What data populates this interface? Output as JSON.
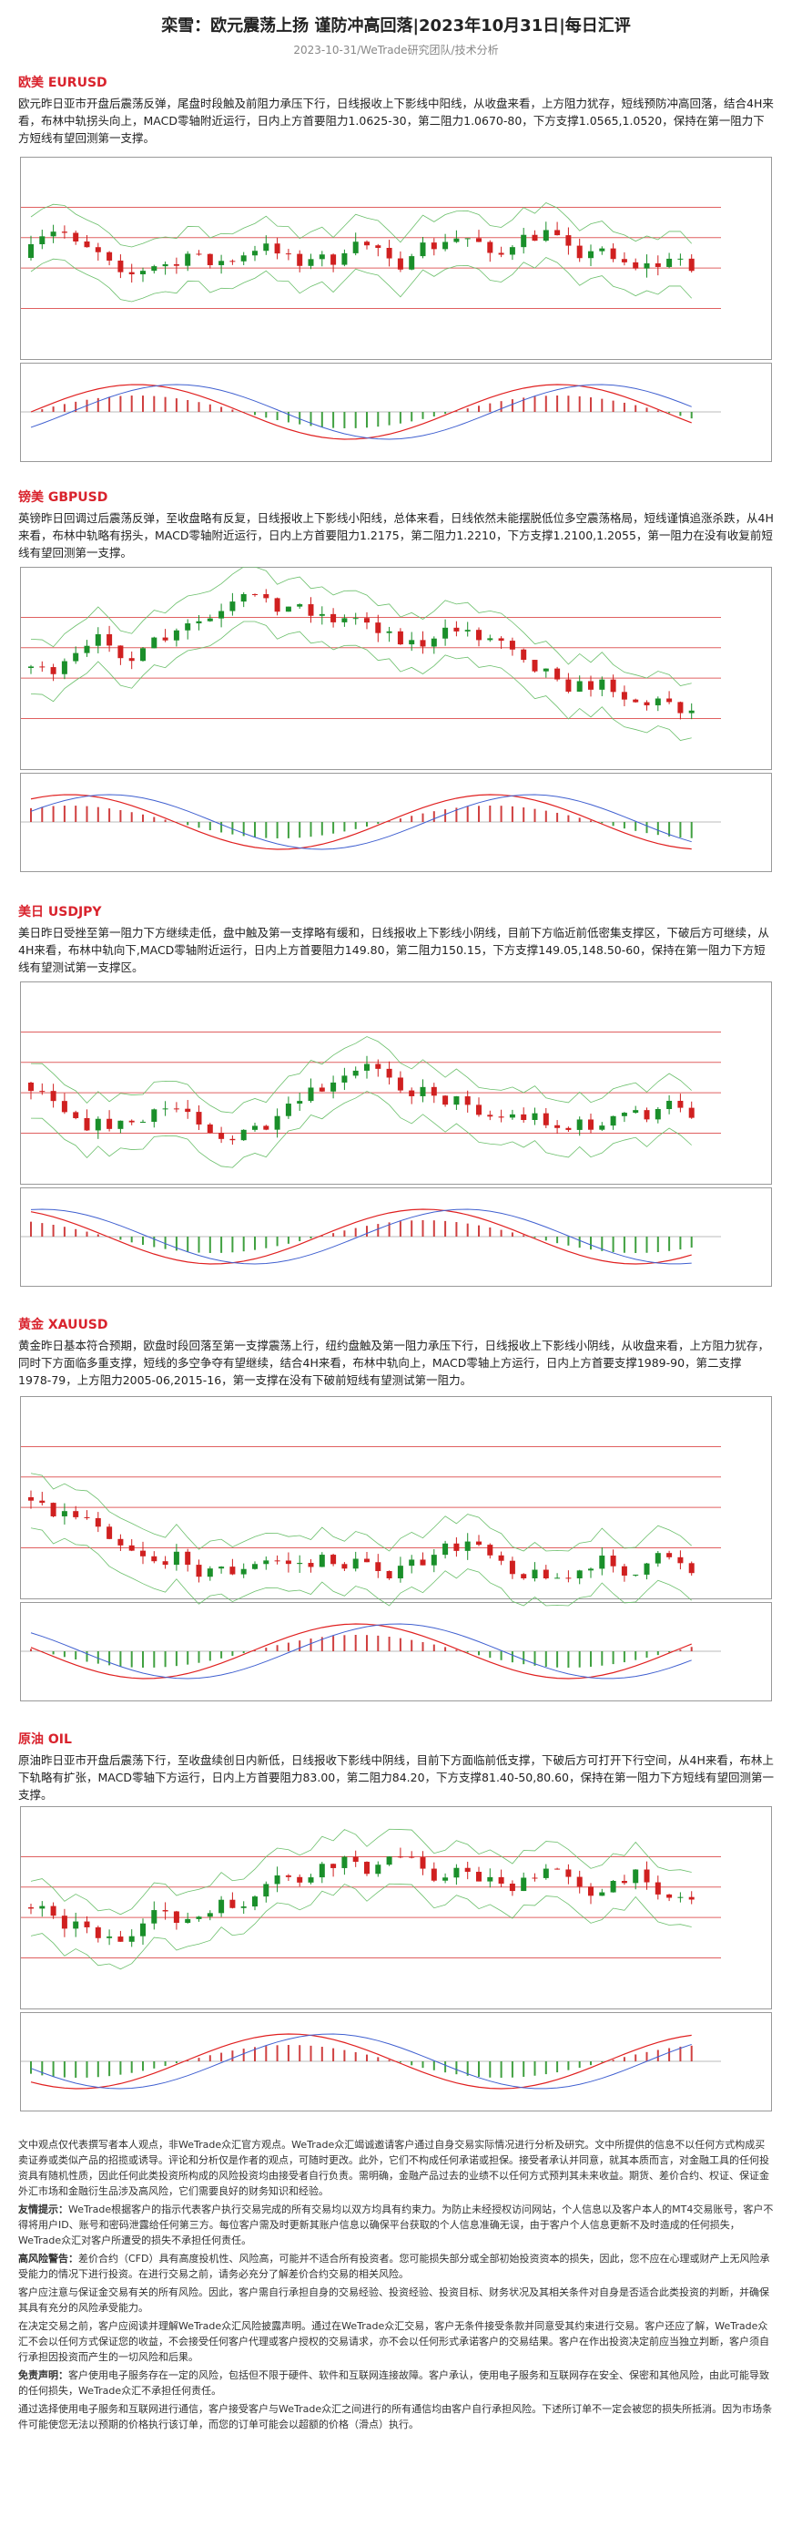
{
  "header": {
    "title": "栾雪：欧元震荡上扬 谨防冲高回落|2023年10月31日|每日汇评",
    "subtitle": "2023-10-31/WeTrade研究团队/技术分析"
  },
  "sections": [
    {
      "heading": "欧美 EURUSD",
      "body": "欧元昨日亚市开盘后震荡反弹，尾盘时段触及前阻力承压下行，日线报收上下影线中阳线，从收盘来看，上方阻力犹存，短线预防冲高回落，结合4H来看，布林中轨拐头向上，MACD零轴附近运行，日内上方首要阻力1.0625-30，第二阻力1.0670-80，下方支撑1.0565,1.0520，保持在第一阻力下方短线有望回测第一支撑。"
    },
    {
      "heading": "镑美 GBPUSD",
      "body": "英镑昨日回调过后震荡反弹，至收盘略有反复，日线报收上下影线小阳线，总体来看，日线依然未能摆脱低位多空震荡格局，短线谨慎追涨杀跌，从4H来看，布林中轨略有拐头，MACD零轴附近运行，日内上方首要阻力1.2175，第二阻力1.2210，下方支撑1.2100,1.2055，第一阻力在没有收复前短线有望回测第一支撑。"
    },
    {
      "heading": "美日 USDJPY",
      "body": "美日昨日受挫至第一阻力下方继续走低，盘中触及第一支撑略有缓和，日线报收上下影线小阴线，目前下方临近前低密集支撑区，下破后方可继续，从4H来看，布林中轨向下,MACD零轴附近运行，日内上方首要阻力149.80，第二阻力150.15，下方支撑149.05,148.50-60，保持在第一阻力下方短线有望测试第一支撑区。"
    },
    {
      "heading": "黄金 XAUUSD",
      "body": "黄金昨日基本符合预期，欧盘时段回落至第一支撑震荡上行，纽约盘触及第一阻力承压下行，日线报收上下影线小阴线，从收盘来看，上方阻力犹存，同时下方面临多重支撑，短线的多空争夺有望继续，结合4H来看，布林中轨向上，MACD零轴上方运行，日内上方首要支撑1989-90，第二支撑1978-79，上方阻力2005-06,2015-16，第一支撑在没有下破前短线有望测试第一阻力。"
    },
    {
      "heading": "原油 OIL",
      "body": "原油昨日亚市开盘后震荡下行，至收盘续创日内新低，日线报收下影线中阴线，目前下方面临前低支撑，下破后方可打开下行空间，从4H来看，布林上下轨略有扩张，MACD零轴下方运行，日内上方首要阻力83.00，第二阻力84.20，下方支撑81.40-50,80.60，保持在第一阻力下方短线有望回测第一支撑。"
    }
  ],
  "disclaimer": [
    {
      "label": "",
      "text": "文中观点仅代表撰写者本人观点，非WeTrade众汇官方观点。WeTrade众汇竭诚邀请客户通过自身交易实际情况进行分析及研究。文中所提供的信息不以任何方式构成买卖证券或类似产品的招揽或诱导。评论和分析仅是作者的观点，可随时更改。此外，它们不构成任何承诺或担保。接受者承认并同意，就其本质而言，对金融工具的任何投资具有随机性质，因此任何此类投资所构成的风险投资均由接受者自行负责。需明确，金融产品过去的业绩不以任何方式预判其未来收益。期货、差价合约、权证、保证金外汇市场和金融衍生品涉及高风险，它们需要良好的财务知识和经验。"
    },
    {
      "label": "友情提示：",
      "text": "WeTrade根据客户的指示代表客户执行交易完成的所有交易均以双方均具有约束力。为防止未经授权访问网站，个人信息以及客户本人的MT4交易账号，客户不得将用户ID、账号和密码泄露给任何第三方。每位客户需及时更新其账户信息以确保平台获取的个人信息准确无误，由于客户个人信息更新不及时造成的任何损失，WeTrade众汇对客户所遭受的损失不承担任何责任。"
    },
    {
      "label": "高风险警告：",
      "text": "差价合约（CFD）具有高度投机性、风险高，可能并不适合所有投资者。您可能损失部分或全部初始投资资本的损失，因此，您不应在心理或财产上无风险承受能力的情况下进行投资。在进行交易之前，请务必充分了解差价合约交易的相关风险。"
    },
    {
      "label": "",
      "text": "客户应注意与保证金交易有关的所有风险。因此，客户需自行承担自身的交易经验、投资经验、投资目标、财务状况及其相关条件对自身是否适合此类投资的判断，并确保其具有充分的风险承受能力。"
    },
    {
      "label": "",
      "text": "在决定交易之前，客户应阅读并理解WeTrade众汇风险披露声明。通过在WeTrade众汇交易，客户无条件接受条款并同意受其约束进行交易。客户还应了解，WeTrade众汇不会以任何方式保证您的收益，不会接受任何客户代理或客户授权的交易请求，亦不会以任何形式承诺客户的交易结果。客户在作出投资决定前应当独立判断，客户须自行承担因投资而产生的一切风险和后果。"
    },
    {
      "label": "免责声明：",
      "text": "客户使用电子服务存在一定的风险，包括但不限于硬件、软件和互联网连接故障。客户承认，使用电子服务和互联网存在安全、保密和其他风险，由此可能导致的任何损失，WeTrade众汇不承担任何责任。"
    },
    {
      "label": "",
      "text": "通过选择使用电子服务和互联网进行通信，客户接受客户与WeTrade众汇之间进行的所有通信均由客户自行承担风险。下述所订单不一定会被您的损失所抵消。因为市场条件可能使您无法以预期的价格执行该订单，而您的订单可能会以超额的价格（滑点）执行。"
    }
  ]
}
